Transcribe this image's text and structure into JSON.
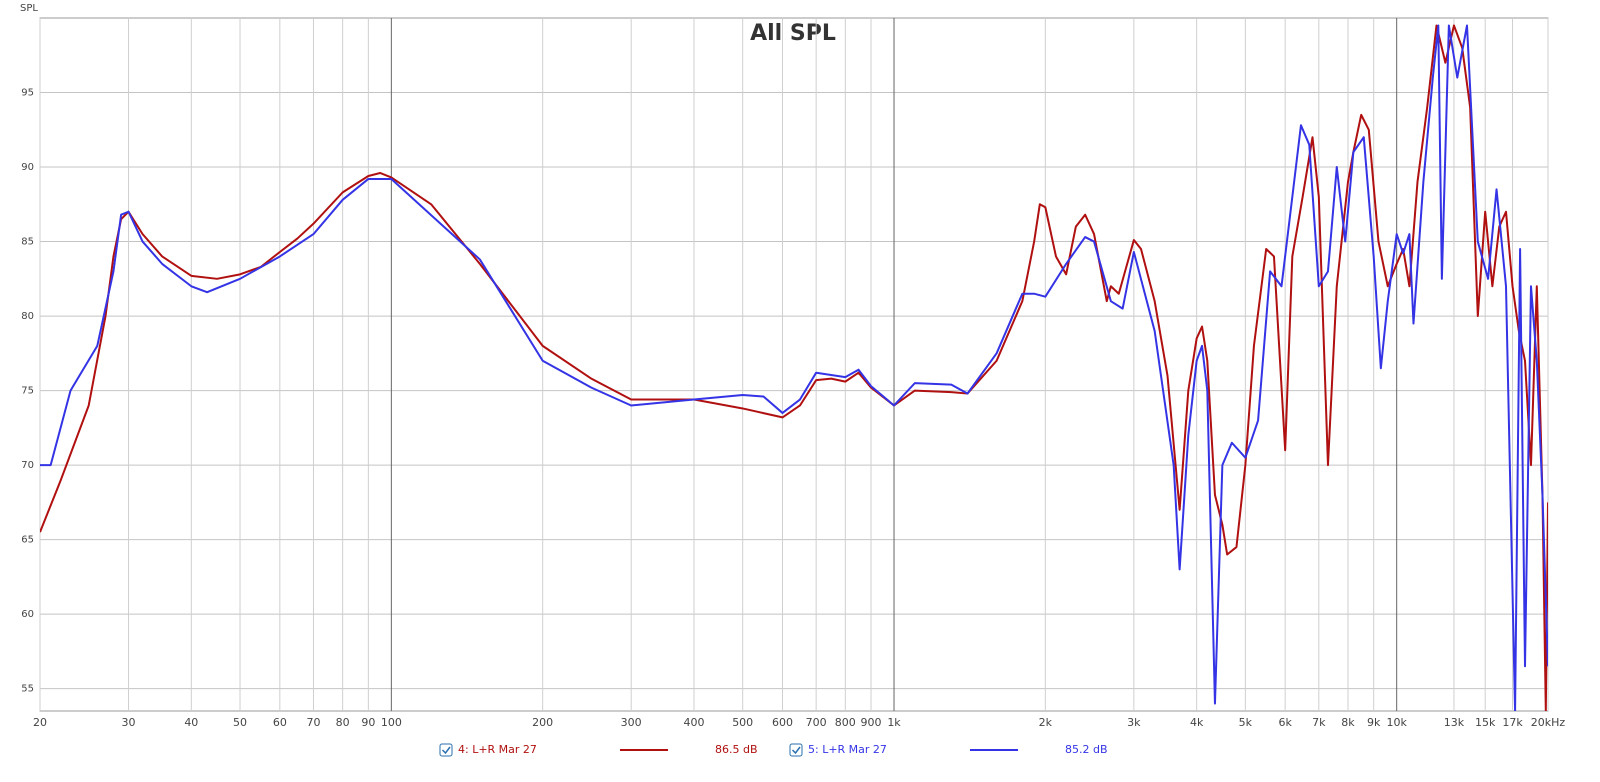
{
  "chart_data": {
    "type": "line",
    "title": "All SPL",
    "y_label": "SPL",
    "log_x": true,
    "grid": true,
    "xlim": [
      20,
      20000
    ],
    "ylim": [
      53.5,
      100
    ],
    "xticks": [
      20,
      30,
      40,
      50,
      60,
      70,
      80,
      90,
      100,
      200,
      300,
      400,
      500,
      600,
      700,
      800,
      900,
      {
        "value": 1000,
        "label": "1k"
      },
      {
        "value": 2000,
        "label": "2k"
      },
      {
        "value": 3000,
        "label": "3k"
      },
      {
        "value": 4000,
        "label": "4k"
      },
      {
        "value": 5000,
        "label": "5k"
      },
      {
        "value": 6000,
        "label": "6k"
      },
      {
        "value": 7000,
        "label": "7k"
      },
      {
        "value": 8000,
        "label": "8k"
      },
      {
        "value": 9000,
        "label": "9k"
      },
      {
        "value": 10000,
        "label": "10k"
      },
      {
        "value": 13000,
        "label": "13k"
      },
      {
        "value": 15000,
        "label": "15k"
      },
      {
        "value": 17000,
        "label": "17k"
      },
      {
        "value": 20000,
        "label": "20kHz"
      }
    ],
    "yticks": [
      55,
      60,
      65,
      70,
      75,
      80,
      85,
      90,
      95
    ],
    "series": [
      {
        "name": "4: L+R Mar 27",
        "level": "86.5 dB",
        "color": "#b01010",
        "x": [
          20,
          22,
          25,
          27,
          28,
          29,
          30,
          32,
          35,
          40,
          45,
          50,
          55,
          60,
          65,
          70,
          80,
          90,
          95,
          100,
          120,
          150,
          200,
          250,
          300,
          400,
          500,
          600,
          650,
          700,
          750,
          800,
          850,
          900,
          1000,
          1100,
          1300,
          1400,
          1600,
          1800,
          1900,
          1950,
          2000,
          2100,
          2200,
          2300,
          2400,
          2500,
          2650,
          2700,
          2800,
          3000,
          3100,
          3300,
          3500,
          3700,
          3850,
          4000,
          4100,
          4200,
          4350,
          4500,
          4600,
          4800,
          5000,
          5200,
          5500,
          5700,
          6000,
          6200,
          6500,
          6800,
          7000,
          7300,
          7600,
          8000,
          8200,
          8500,
          8800,
          9200,
          9600,
          10000,
          10300,
          10600,
          11000,
          11500,
          12000,
          12500,
          13000,
          13500,
          14000,
          14500,
          15000,
          15500,
          16000,
          16500,
          17000,
          17500,
          18000,
          18500,
          19000,
          19500,
          19800,
          20000
        ],
        "values": [
          65.5,
          69,
          74,
          80,
          84,
          86.5,
          87,
          85.5,
          84,
          82.7,
          82.5,
          82.8,
          83.3,
          84.3,
          85.2,
          86.2,
          88.3,
          89.4,
          89.6,
          89.3,
          87.5,
          83.5,
          78,
          75.8,
          74.4,
          74.4,
          73.8,
          73.2,
          74,
          75.7,
          75.8,
          75.6,
          76.2,
          75.2,
          74,
          75,
          74.9,
          74.8,
          77,
          81,
          85,
          87.5,
          87.3,
          84,
          82.8,
          86,
          86.8,
          85.5,
          81,
          82,
          81.5,
          85.1,
          84.5,
          81,
          76,
          67,
          75,
          78.5,
          79.3,
          77,
          68,
          66,
          64,
          64.5,
          70,
          78,
          84.5,
          84,
          71,
          84,
          88,
          92,
          88,
          70,
          82,
          89,
          91,
          93.5,
          92.5,
          85,
          82,
          83.5,
          84.5,
          82,
          89,
          94,
          99.5,
          97,
          99.5,
          98,
          94,
          80,
          87,
          82,
          86,
          87,
          82,
          79,
          77,
          70,
          82,
          68,
          53.5,
          67.5
        ]
      },
      {
        "name": "5: L+R Mar 27",
        "level": "85.2 dB",
        "color": "#3434e6",
        "x": [
          20,
          21,
          23,
          26,
          28,
          29,
          30,
          32,
          35,
          40,
          43,
          50,
          60,
          70,
          80,
          90,
          100,
          150,
          200,
          250,
          300,
          400,
          500,
          550,
          600,
          650,
          700,
          800,
          850,
          900,
          1000,
          1100,
          1300,
          1400,
          1600,
          1800,
          1900,
          2000,
          2200,
          2400,
          2500,
          2700,
          2850,
          3000,
          3300,
          3600,
          3700,
          3850,
          4000,
          4100,
          4200,
          4350,
          4500,
          4700,
          5000,
          5300,
          5600,
          5900,
          6200,
          6450,
          6700,
          7000,
          7300,
          7600,
          7900,
          8200,
          8600,
          9000,
          9300,
          9600,
          10000,
          10300,
          10600,
          10800,
          11300,
          11800,
          12100,
          12300,
          12700,
          13200,
          13800,
          14500,
          15200,
          15800,
          16500,
          17200,
          17600,
          18000,
          18500,
          19000,
          19500,
          20000
        ],
        "values": [
          70,
          70,
          75,
          78,
          83,
          86.8,
          87,
          85,
          83.5,
          82,
          81.6,
          82.5,
          84,
          85.5,
          87.8,
          89.2,
          89.2,
          83.8,
          77,
          75.2,
          74,
          74.4,
          74.7,
          74.6,
          73.5,
          74.4,
          76.2,
          75.9,
          76.4,
          75.3,
          74,
          75.5,
          75.4,
          74.8,
          77.5,
          81.5,
          81.5,
          81.3,
          83.5,
          85.3,
          85,
          81,
          80.5,
          84.3,
          79,
          70,
          63,
          72,
          77,
          78,
          75,
          54,
          70,
          71.5,
          70.5,
          73,
          83,
          82,
          88,
          92.8,
          91.5,
          82,
          83,
          90,
          85,
          91,
          92,
          84,
          76.5,
          81,
          85.5,
          84.2,
          85.5,
          79.5,
          89,
          96,
          99.5,
          82.5,
          99.5,
          96,
          99.5,
          85,
          82.5,
          88.5,
          82,
          53.5,
          84.5,
          56.5,
          82,
          77,
          68,
          56.5
        ]
      }
    ]
  }
}
